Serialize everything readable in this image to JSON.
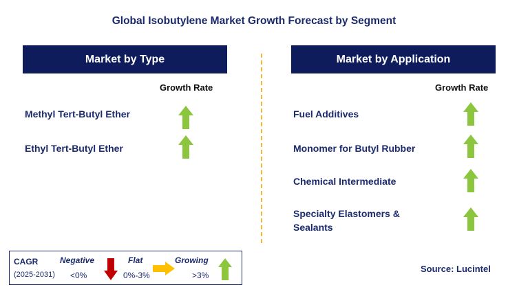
{
  "title": "Global Isobutylene Market Growth Forecast by Segment",
  "left_panel": {
    "header": "Market by Type",
    "growth_rate_label": "Growth Rate",
    "segments": [
      {
        "label": "Methyl Tert-Butyl Ether",
        "trend": "growing"
      },
      {
        "label": "Ethyl Tert-Butyl Ether",
        "trend": "growing"
      }
    ]
  },
  "right_panel": {
    "header": "Market by Application",
    "growth_rate_label": "Growth Rate",
    "segments": [
      {
        "label": "Fuel Additives",
        "trend": "growing"
      },
      {
        "label": "Monomer for Butyl Rubber",
        "trend": "growing"
      },
      {
        "label": "Chemical Intermediate",
        "trend": "growing"
      },
      {
        "label": "Specialty Elastomers & Sealants",
        "label_line1": "Specialty Elastomers &",
        "label_line2": "Sealants",
        "trend": "growing"
      }
    ]
  },
  "legend": {
    "cagr_label": "CAGR",
    "period": "(2025-2031)",
    "negative_label": "Negative",
    "negative_range": "<0%",
    "flat_label": "Flat",
    "flat_range": "0%-3%",
    "growing_label": "Growing",
    "growing_range": ">3%"
  },
  "source": "Source: Lucintel",
  "colors": {
    "header_bg": "#0f1c5c",
    "text_navy": "#1a2a6c",
    "up_arrow": "#8cc63f",
    "down_arrow": "#c00000",
    "flat_arrow": "#ffc000",
    "divider": "#f4b73a"
  }
}
